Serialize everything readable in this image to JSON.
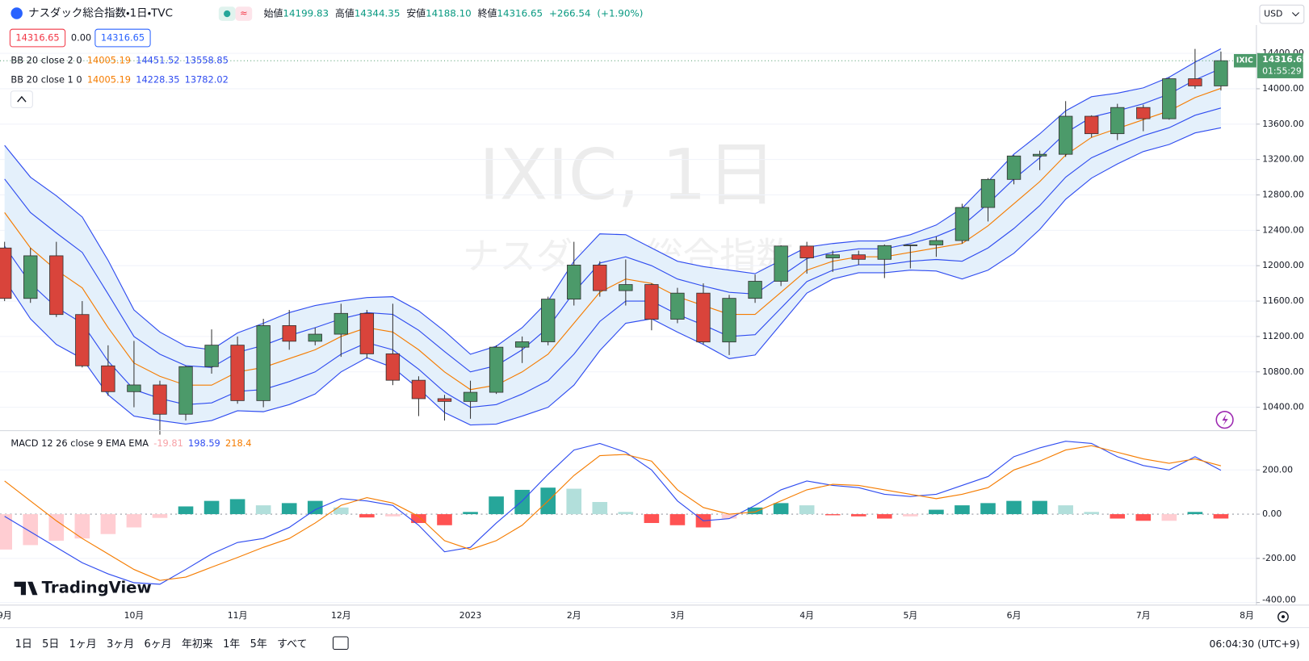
{
  "header": {
    "symbol": "ナスダック総合指数・1日・TVC",
    "open_label": "始値",
    "open": "14199.83",
    "high_label": "高値",
    "high": "14344.35",
    "low_label": "安値",
    "low": "14188.10",
    "close_label": "終値",
    "close": "14316.65",
    "change": "+266.54",
    "change_pct": "(+1.90%)",
    "spread": "0.00"
  },
  "currency": "USD",
  "ticker_tag": "IXIC",
  "countdown": "01:55:29",
  "watermark": {
    "line1": "IXIC, 1日",
    "line2": "ナスダック総合指数"
  },
  "logo": "TradingView",
  "toolbar": {
    "ranges": [
      "1日",
      "5日",
      "1ヶ月",
      "3ヶ月",
      "6ヶ月",
      "年初来",
      "1年",
      "5年",
      "すべて"
    ],
    "clock": "06:04:30 (UTC+9)"
  },
  "chart_data": [
    {
      "type": "candlestick",
      "up_color": "#4c9a6a",
      "down_color": "#d9443b",
      "band_fill": "#e4f0fb",
      "categories": [
        "9月",
        null,
        null,
        null,
        null,
        "10月",
        null,
        null,
        null,
        "11月",
        null,
        null,
        null,
        "12月",
        null,
        null,
        null,
        null,
        "2023",
        null,
        null,
        null,
        "2月",
        null,
        null,
        null,
        "3月",
        null,
        null,
        null,
        null,
        "4月",
        null,
        null,
        null,
        "5月",
        null,
        null,
        null,
        "6月",
        null,
        null,
        null,
        null,
        "7月",
        null,
        null,
        null,
        "8月"
      ],
      "open": [
        12200,
        11630,
        12112,
        11448,
        10868,
        10576,
        10652,
        10321,
        10859,
        11102,
        10475,
        11323,
        11146,
        11226,
        11461,
        11004,
        10705,
        10497,
        10466,
        10569,
        11079,
        11140,
        11622,
        12007,
        11718,
        11787,
        11395,
        11690,
        11138,
        11631,
        11824,
        12222,
        12088,
        12123,
        12072,
        12227,
        12235,
        12284,
        12658,
        12975,
        13240,
        13259,
        13689,
        13492,
        13788,
        13661,
        14113,
        14032,
        null
      ],
      "high": [
        12270,
        12200,
        12270,
        11600,
        11100,
        11150,
        10700,
        10870,
        11280,
        11200,
        11400,
        11500,
        11300,
        11570,
        11500,
        11570,
        10750,
        10540,
        10700,
        11100,
        11200,
        11650,
        12270,
        12050,
        12070,
        11800,
        11750,
        11800,
        11670,
        11900,
        12230,
        12270,
        12170,
        12170,
        12240,
        12240,
        12330,
        12700,
        12990,
        13250,
        13300,
        13860,
        13700,
        13830,
        13820,
        14130,
        14450,
        14420,
        null
      ],
      "low": [
        11600,
        11580,
        11420,
        10850,
        10530,
        10400,
        10090,
        10250,
        10780,
        10440,
        10400,
        11050,
        11100,
        10970,
        10950,
        10650,
        10300,
        10250,
        10270,
        10550,
        10900,
        11100,
        11550,
        11650,
        11550,
        11270,
        11350,
        11110,
        10990,
        11580,
        11770,
        11910,
        11930,
        12010,
        11860,
        11970,
        12100,
        12250,
        12500,
        12920,
        13080,
        13230,
        13450,
        13420,
        13520,
        13650,
        14000,
        13980,
        null
      ],
      "close": [
        11630,
        12112,
        11448,
        10868,
        10576,
        10652,
        10321,
        10859,
        11102,
        10475,
        11323,
        11146,
        11226,
        11461,
        11004,
        10705,
        10497,
        10466,
        10569,
        11079,
        11140,
        11622,
        12007,
        11718,
        11787,
        11395,
        11690,
        11138,
        11631,
        11824,
        12222,
        12088,
        12123,
        12072,
        12227,
        12235,
        12284,
        12658,
        12975,
        13240,
        13259,
        13689,
        13492,
        13788,
        13661,
        14113,
        14032,
        14316.65,
        null
      ],
      "indicators": [
        {
          "name": "BB 20 close 2 0",
          "series": [
            {
              "color": "#f57c00",
              "values": [
                12600,
                12200,
                11950,
                11750,
                11300,
                10900,
                10750,
                10650,
                10650,
                10800,
                10850,
                10950,
                11050,
                11200,
                11300,
                11250,
                11050,
                10800,
                10600,
                10650,
                10800,
                11000,
                11350,
                11700,
                11850,
                11800,
                11650,
                11550,
                11450,
                11450,
                11700,
                11950,
                12050,
                12100,
                12100,
                12150,
                12200,
                12250,
                12450,
                12700,
                12950,
                13250,
                13450,
                13550,
                13650,
                13750,
                13900,
                14005.19,
                null
              ]
            },
            {
              "color": "#2f4cf0",
              "values": [
                13360,
                13000,
                12790,
                12550,
                12060,
                11500,
                11250,
                11090,
                11050,
                11240,
                11350,
                11470,
                11550,
                11600,
                11640,
                11650,
                11490,
                11260,
                11000,
                11090,
                11300,
                11600,
                12050,
                12360,
                12350,
                12200,
                12050,
                11990,
                11950,
                11910,
                12060,
                12210,
                12250,
                12280,
                12280,
                12350,
                12460,
                12650,
                12950,
                13260,
                13490,
                13750,
                13910,
                13950,
                14010,
                14130,
                14300,
                14451.52,
                null
              ]
            },
            {
              "color": "#2f4cf0",
              "values": [
                11840,
                11400,
                11110,
                10950,
                10540,
                10300,
                10250,
                10210,
                10250,
                10360,
                10350,
                10430,
                10550,
                10800,
                10960,
                10850,
                10610,
                10340,
                10200,
                10210,
                10300,
                10400,
                10650,
                11040,
                11350,
                11400,
                11250,
                11110,
                10950,
                10990,
                11340,
                11690,
                11850,
                11920,
                11920,
                11950,
                11940,
                11850,
                11950,
                12140,
                12410,
                12750,
                12990,
                13150,
                13290,
                13370,
                13500,
                13558.85,
                null
              ]
            }
          ]
        },
        {
          "name": "BB 20 close 1 0",
          "series": [
            {
              "color": "#2f4cf0",
              "values": [
                12980,
                12600,
                12370,
                12150,
                11680,
                11200,
                11000,
                10870,
                10850,
                11020,
                11100,
                11210,
                11300,
                11400,
                11470,
                11450,
                11270,
                11030,
                10800,
                10870,
                11050,
                11300,
                11700,
                12030,
                12100,
                12000,
                11850,
                11770,
                11700,
                11680,
                11880,
                12080,
                12150,
                12190,
                12190,
                12250,
                12330,
                12450,
                12700,
                12980,
                13220,
                13500,
                13680,
                13750,
                13830,
                13940,
                14100,
                14228.35,
                null
              ]
            },
            {
              "color": "#2f4cf0",
              "values": [
                12220,
                11800,
                11530,
                11350,
                10920,
                10600,
                10500,
                10430,
                10450,
                10580,
                10600,
                10690,
                10800,
                11000,
                11130,
                11050,
                10830,
                10570,
                10400,
                10430,
                10550,
                10700,
                11000,
                11370,
                11600,
                11600,
                11450,
                11330,
                11200,
                11220,
                11520,
                11820,
                11950,
                12010,
                12010,
                12050,
                12070,
                12050,
                12200,
                12420,
                12680,
                13000,
                13220,
                13350,
                13470,
                13560,
                13700,
                13782.02,
                null
              ]
            }
          ]
        }
      ],
      "ylim": [
        10145,
        14720
      ],
      "yticks": [
        {
          "value": 10400,
          "label": "10400.00"
        },
        {
          "value": 10800,
          "label": "10800.00"
        },
        {
          "value": 11200,
          "label": "11200.00"
        },
        {
          "value": 11600,
          "label": "11600.00"
        },
        {
          "value": 12000,
          "label": "12000.00"
        },
        {
          "value": 12400,
          "label": "12400.00"
        },
        {
          "value": 12800,
          "label": "12800.00"
        },
        {
          "value": 13200,
          "label": "13200.00"
        },
        {
          "value": 13600,
          "label": "13600.00"
        },
        {
          "value": 14000,
          "label": "14000.00"
        },
        {
          "value": 14400,
          "label": "14400.00"
        }
      ],
      "grid": true
    },
    {
      "type": "macd",
      "title": "MACD 12 26 close 9 EMA EMA",
      "histogram": {
        "colors": [
          "#26a69a",
          "#b2dfdb",
          "#ffcdd2",
          "#ff5252"
        ],
        "legend_color": "#f7a1a6",
        "values": [
          -160,
          -140,
          -120,
          -110,
          -90,
          -60,
          -17,
          35,
          60,
          68,
          40,
          50,
          60,
          30,
          -15,
          -10,
          -40,
          -50,
          10,
          80,
          110,
          120,
          115,
          55,
          10,
          -40,
          -50,
          -60,
          -20,
          30,
          50,
          40,
          -5,
          -10,
          -20,
          -10,
          20,
          40,
          50,
          60,
          60,
          40,
          10,
          -20,
          -30,
          -30,
          10,
          -19.81,
          null
        ]
      },
      "series": [
        {
          "color": "#2f4cf0",
          "values": [
            -10,
            -80,
            -150,
            -220,
            -270,
            -310,
            -317,
            -250,
            -180,
            -128,
            -110,
            -60,
            20,
            70,
            60,
            40,
            -50,
            -170,
            -150,
            -40,
            60,
            180,
            290,
            320,
            280,
            200,
            60,
            -30,
            -20,
            40,
            110,
            150,
            130,
            120,
            90,
            80,
            90,
            130,
            170,
            260,
            300,
            330,
            320,
            260,
            220,
            200,
            260,
            198.59,
            null
          ]
        },
        {
          "color": "#f57c00",
          "values": [
            150,
            60,
            -30,
            -110,
            -180,
            -250,
            -300,
            -285,
            -240,
            -196,
            -150,
            -110,
            -40,
            40,
            75,
            50,
            -10,
            -120,
            -160,
            -120,
            -50,
            60,
            175,
            265,
            270,
            240,
            110,
            30,
            0,
            10,
            60,
            110,
            135,
            130,
            110,
            90,
            70,
            90,
            120,
            200,
            240,
            290,
            310,
            280,
            250,
            230,
            250,
            218.4,
            null
          ]
        }
      ],
      "ylim": [
        -400,
        374
      ],
      "yticks": [
        {
          "value": -400,
          "label": "-400.00"
        },
        {
          "value": -200,
          "label": "-200.00"
        },
        {
          "value": 0,
          "label": "0.00"
        },
        {
          "value": 200,
          "label": "200.00"
        }
      ]
    }
  ]
}
